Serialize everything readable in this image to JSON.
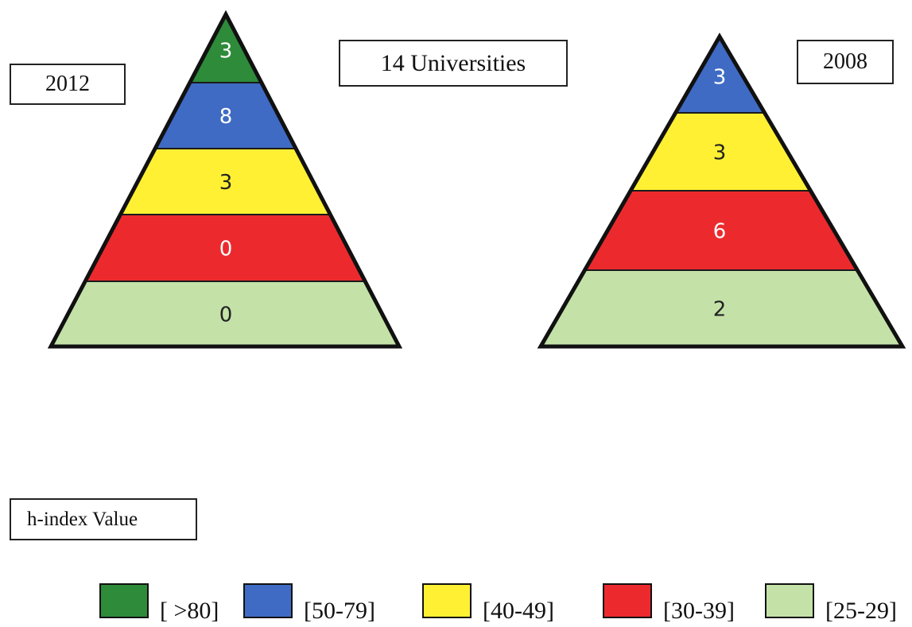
{
  "title": "14 Universities",
  "legend_title": "h-index Value",
  "pyramids": [
    {
      "year": "2012",
      "tiers": [
        {
          "range": "[ >80]",
          "value": "3",
          "color": "#2e8b3a",
          "text_color": "#ffffff"
        },
        {
          "range": "[50-79]",
          "value": "8",
          "color": "#3f6bc4",
          "text_color": "#ffffff"
        },
        {
          "range": "[40-49]",
          "value": "3",
          "color": "#fff033",
          "text_color": "#222222"
        },
        {
          "range": "[30-39]",
          "value": "0",
          "color": "#ec2a2e",
          "text_color": "#ffffff"
        },
        {
          "range": "[25-29]",
          "value": "0",
          "color": "#c4e2a8",
          "text_color": "#222222"
        }
      ]
    },
    {
      "year": "2008",
      "tiers": [
        {
          "range": "[50-79]",
          "value": "3",
          "color": "#3f6bc4",
          "text_color": "#ffffff"
        },
        {
          "range": "[40-49]",
          "value": "3",
          "color": "#fff033",
          "text_color": "#222222"
        },
        {
          "range": "[30-39]",
          "value": "6",
          "color": "#ec2a2e",
          "text_color": "#ffffff"
        },
        {
          "range": "[25-29]",
          "value": "2",
          "color": "#c4e2a8",
          "text_color": "#222222"
        }
      ]
    }
  ],
  "legend": [
    {
      "label": "[ >80]",
      "color": "#2e8b3a"
    },
    {
      "label": "[50-79]",
      "color": "#3f6bc4"
    },
    {
      "label": "[40-49]",
      "color": "#fff033"
    },
    {
      "label": "[30-39]",
      "color": "#ec2a2e"
    },
    {
      "label": "[25-29]",
      "color": "#c4e2a8"
    }
  ]
}
